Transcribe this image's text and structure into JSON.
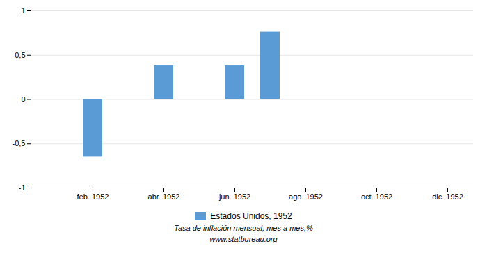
{
  "chart_data": {
    "type": "bar",
    "categories": [
      null,
      "feb. 1952",
      null,
      "abr. 1952",
      null,
      "jun. 1952",
      null,
      "ago. 1952",
      null,
      "oct. 1952",
      null,
      "dic. 1952"
    ],
    "series": [
      {
        "name": "Estados Unidos, 1952",
        "color": "#5b9bd5",
        "values": [
          0,
          -0.65,
          0,
          0.38,
          0,
          0.38,
          0.76,
          0,
          0,
          0,
          0,
          0
        ]
      }
    ],
    "ylim": [
      -1.0,
      1.0
    ],
    "yticks": [
      -1,
      {
        "value": -0.5,
        "label": "-0,5"
      },
      0,
      {
        "value": 0.5,
        "label": "0,5"
      },
      1
    ],
    "grid": true,
    "legend": "bottom",
    "caption": "Tasa de inflación mensual, mes a mes,%",
    "source": "www.statbureau.org"
  }
}
